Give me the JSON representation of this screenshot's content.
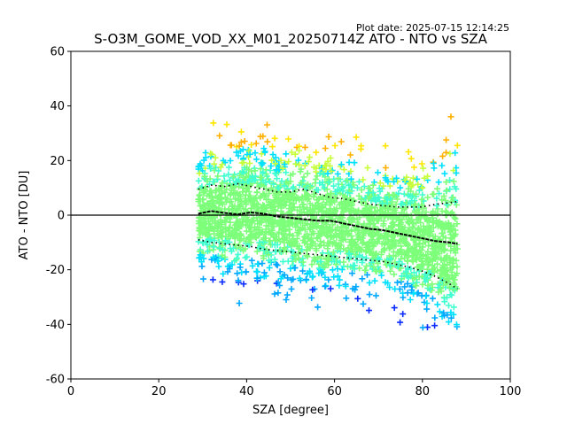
{
  "chart_data": {
    "type": "scatter",
    "title": "S-O3M_GOME_VOD_XX_M01_20250714Z ATO - NTO vs SZA",
    "plot_date": "Plot date: 2025-07-15 12:14:25",
    "xlabel": "SZA [degree]",
    "ylabel": "ATO - NTO [DU]",
    "xlim": [
      0,
      100
    ],
    "ylim": [
      -60,
      60
    ],
    "x_ticks": [
      "0",
      "20",
      "40",
      "60",
      "80",
      "100"
    ],
    "y_ticks": [
      "-60",
      "-40",
      "-20",
      "0",
      "20",
      "40",
      "60"
    ],
    "zero_line": 0,
    "grid": false,
    "legend": "none",
    "scatter_x_range": [
      29,
      88
    ],
    "point_colors": [
      "#0a2cff",
      "#00a8ff",
      "#00e0ff",
      "#40ffd0",
      "#7dff7a",
      "#c8ff3c",
      "#ffe600",
      "#ffb000"
    ],
    "mean_line": {
      "x": [
        29,
        32,
        35,
        38,
        41,
        44,
        47,
        50,
        53,
        56,
        59,
        62,
        65,
        68,
        71,
        74,
        77,
        80,
        83,
        86,
        88
      ],
      "y": [
        0.5,
        1.5,
        0.8,
        0.3,
        1.0,
        0.5,
        -0.5,
        -1.0,
        -1.5,
        -2.0,
        -2.0,
        -3.0,
        -4.0,
        -5.0,
        -5.5,
        -6.5,
        -7.5,
        -8.5,
        -9.5,
        -10.0,
        -10.5
      ]
    },
    "upper_std_line": {
      "x": [
        29,
        32,
        35,
        38,
        41,
        44,
        47,
        50,
        53,
        56,
        59,
        62,
        65,
        68,
        71,
        74,
        77,
        80,
        83,
        86,
        88
      ],
      "y": [
        9.5,
        11.0,
        10.5,
        11.5,
        10.5,
        9.5,
        8.5,
        8.5,
        9.5,
        8.0,
        6.5,
        6.0,
        5.0,
        4.0,
        3.5,
        3.0,
        3.0,
        3.0,
        4.0,
        4.5,
        5.0
      ]
    },
    "lower_std_line": {
      "x": [
        29,
        32,
        35,
        38,
        41,
        44,
        47,
        50,
        53,
        56,
        59,
        62,
        65,
        68,
        71,
        74,
        77,
        80,
        83,
        86,
        88
      ],
      "y": [
        -9.0,
        -10.0,
        -10.5,
        -11.0,
        -11.5,
        -12.5,
        -13.0,
        -13.5,
        -14.0,
        -14.5,
        -15.0,
        -15.5,
        -16.0,
        -16.5,
        -17.0,
        -18.0,
        -19.0,
        -20.5,
        -22.5,
        -25.0,
        -27.0
      ]
    }
  }
}
